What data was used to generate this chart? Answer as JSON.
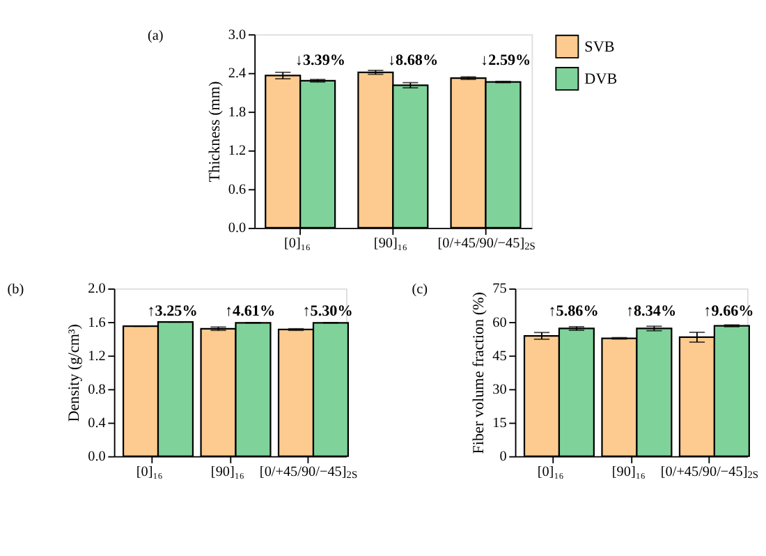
{
  "chart_data": [
    {
      "type": "bar",
      "title": "(a)",
      "ylabel": "Thickness (mm)",
      "categories": [
        "[0]₁₆",
        "[90]₁₆",
        "[0/+45/90/−45]$_{2S}$"
      ],
      "series": [
        {
          "name": "SVB",
          "color": "#fdcb8f",
          "values": [
            2.36,
            2.41,
            2.32
          ],
          "errors": [
            0.05,
            0.03,
            0.02
          ]
        },
        {
          "name": "DVB",
          "color": "#7fd39a",
          "values": [
            2.28,
            2.21,
            2.26
          ],
          "errors": [
            0.02,
            0.04,
            0.01
          ]
        }
      ],
      "ylim": [
        0,
        3.0
      ],
      "yticks": [
        {
          "value": 0,
          "label": "0.0"
        },
        0.6,
        1.2,
        1.8,
        2.4,
        {
          "value": 3,
          "label": "3.0"
        }
      ],
      "annotations": [
        "↓3.39%",
        "↓8.68%",
        "↓2.59%"
      ],
      "legend": "right",
      "grid": false
    },
    {
      "type": "bar",
      "title": "(b)",
      "ylabel": "Density (g/cm³)",
      "categories": [
        "[0]₁₆",
        "[90]₁₆",
        "[0/+45/90/−45]$_{2S}$"
      ],
      "series": [
        {
          "name": "SVB",
          "color": "#fdcb8f",
          "values": [
            1.55,
            1.52,
            1.51
          ],
          "errors": [
            0.0,
            0.02,
            0.01
          ]
        },
        {
          "name": "DVB",
          "color": "#7fd39a",
          "values": [
            1.6,
            1.59,
            1.59
          ],
          "errors": [
            0.0,
            0.0,
            0.0
          ]
        }
      ],
      "ylim": [
        0,
        2.0
      ],
      "yticks": [
        {
          "value": 0,
          "label": "0.0"
        },
        0.4,
        0.8,
        1.2,
        1.6,
        {
          "value": 2,
          "label": "2.0"
        }
      ],
      "annotations": [
        "↑3.25%",
        "↑4.61%",
        "↑5.30%"
      ],
      "legend": false,
      "grid": false
    },
    {
      "type": "bar",
      "title": "(c)",
      "ylabel": "Fiber volume fraction (%)",
      "categories": [
        "[0]₁₆",
        "[90]₁₆",
        "[0/+45/90/−45]$_{2S}$"
      ],
      "series": [
        {
          "name": "SVB",
          "color": "#fdcb8f",
          "values": [
            53.8,
            52.7,
            53.2
          ],
          "errors": [
            1.5,
            0.3,
            2.2
          ]
        },
        {
          "name": "DVB",
          "color": "#7fd39a",
          "values": [
            57.1,
            57.1,
            58.3
          ],
          "errors": [
            0.8,
            1.0,
            0.4
          ]
        }
      ],
      "ylim": [
        0,
        75
      ],
      "yticks": [
        0,
        15,
        30,
        45,
        60,
        75
      ],
      "annotations": [
        "↑5.86%",
        "↑8.34%",
        "↑9.66%"
      ],
      "legend": false,
      "grid": false
    }
  ]
}
